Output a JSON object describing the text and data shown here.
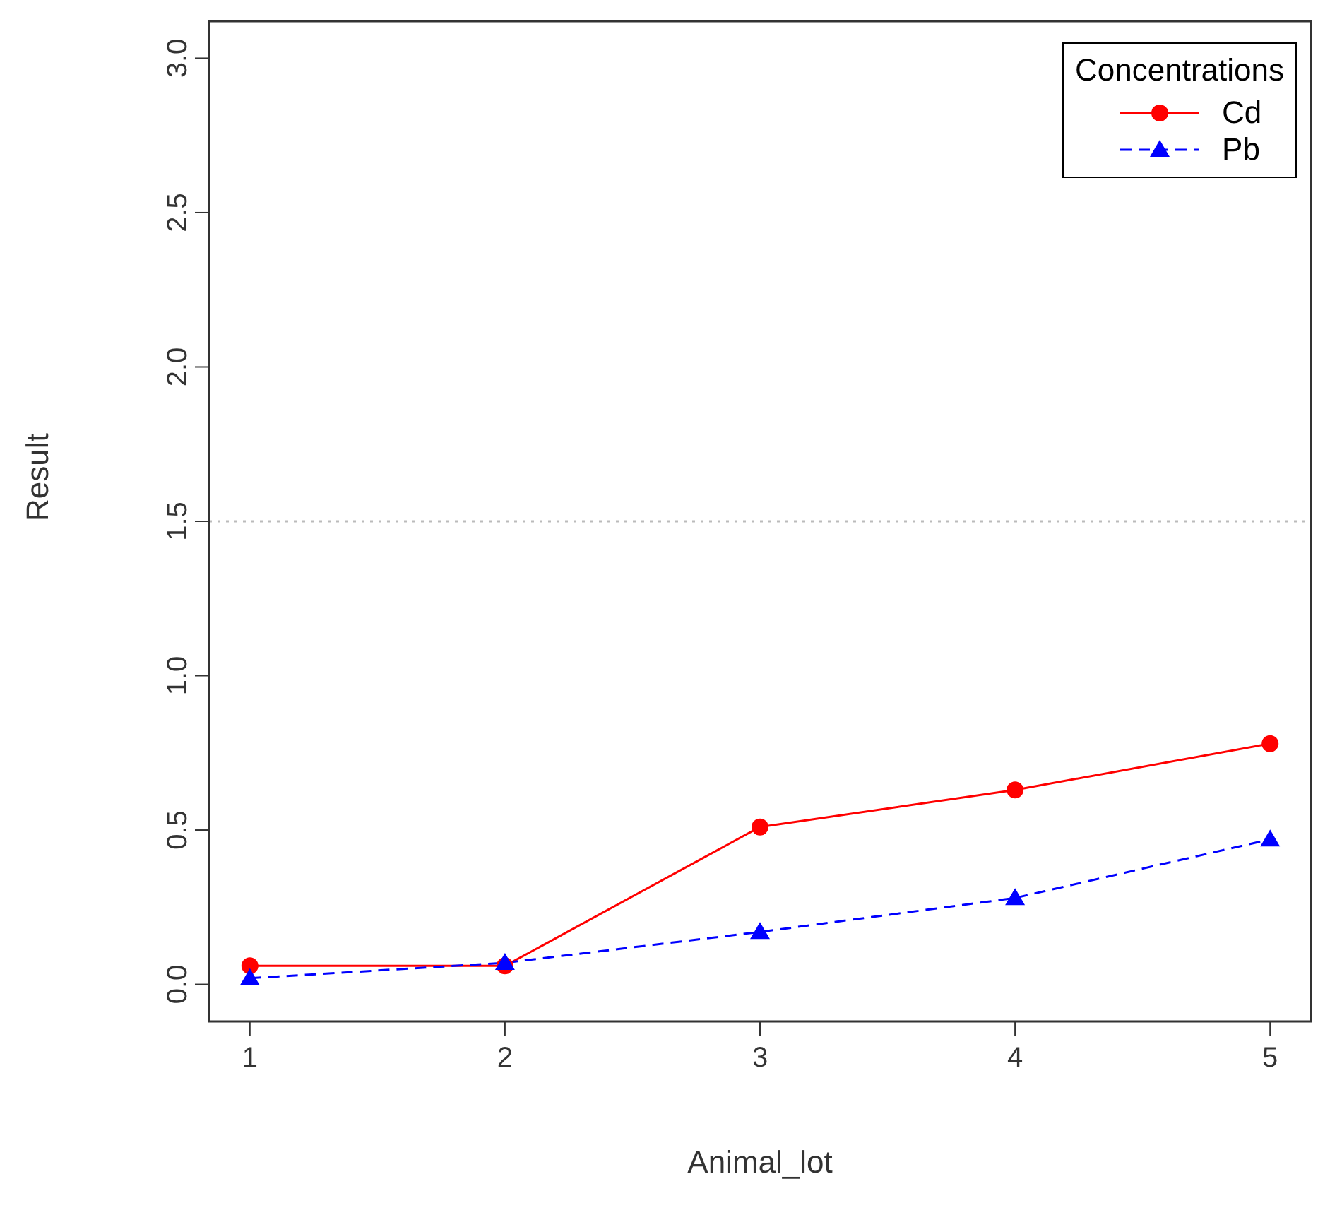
{
  "chart_data": {
    "type": "line",
    "xlabel": "Animal_lot",
    "ylabel": "Result",
    "legend_title": "Concentrations",
    "x": [
      1,
      2,
      3,
      4,
      5
    ],
    "series": [
      {
        "name": "Cd",
        "color": "#ff0000",
        "marker": "circle",
        "line_style": "solid",
        "values": [
          0.06,
          0.06,
          0.51,
          0.63,
          0.78
        ]
      },
      {
        "name": "Pb",
        "color": "#0000ff",
        "marker": "triangle",
        "line_style": "dashed",
        "values": [
          0.02,
          0.07,
          0.17,
          0.28,
          0.47
        ]
      }
    ],
    "xlim": [
      0.84,
      5.16
    ],
    "xticks": [
      1,
      2,
      3,
      4,
      5
    ],
    "ylim": [
      -0.12,
      3.12
    ],
    "yticks": [
      {
        "value": 0,
        "label": "0.0"
      },
      {
        "value": 0.5,
        "label": "0.5"
      },
      {
        "value": 1,
        "label": "1.0"
      },
      {
        "value": 1.5,
        "label": "1.5"
      },
      {
        "value": 2,
        "label": "2.0"
      },
      {
        "value": 2.5,
        "label": "2.5"
      },
      {
        "value": 3,
        "label": "3.0"
      }
    ],
    "ref_lines": [
      {
        "axis": "y",
        "value": 1.5,
        "color": "#bbbbbb",
        "line_style": "dotted"
      }
    ],
    "legend": "top right"
  }
}
